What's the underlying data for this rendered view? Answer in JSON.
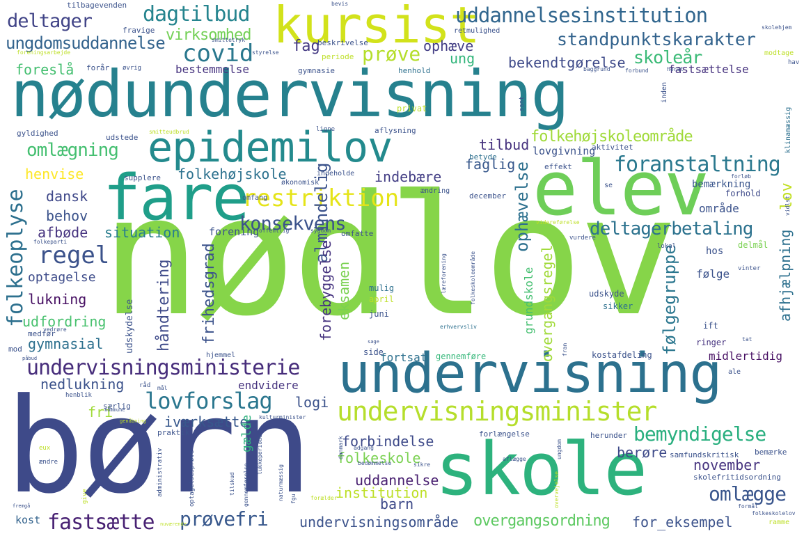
{
  "words": [
    {
      "text": "nødlov",
      "color": "#86d549"
    },
    {
      "text": "børn",
      "color": "#3e4a89"
    },
    {
      "text": "nødundervisning",
      "color": "#26818e"
    },
    {
      "text": "undervisning",
      "color": "#2c718e"
    },
    {
      "text": "skole",
      "color": "#2db27d"
    },
    {
      "text": "elev",
      "color": "#6ece58"
    },
    {
      "text": "fare",
      "color": "#1f9e89"
    },
    {
      "text": "epidemilov",
      "color": "#238a8d"
    },
    {
      "text": "kursist",
      "color": "#d2e21b"
    },
    {
      "text": "undervisningsminister",
      "color": "#b5de2b"
    },
    {
      "text": "undervisningsministerie",
      "color": "#472d7b"
    },
    {
      "text": "restriktion",
      "color": "#e5e419"
    },
    {
      "text": "uddannelsesinstitution",
      "color": "#31668e"
    },
    {
      "text": "standpunktskarakter",
      "color": "#33638d"
    },
    {
      "text": "dagtilbud",
      "color": "#25848e"
    },
    {
      "text": "deltager",
      "color": "#414487"
    },
    {
      "text": "covid",
      "color": "#2a788e"
    },
    {
      "text": "prøve",
      "color": "#b5de2b"
    },
    {
      "text": "foranstaltning",
      "color": "#2a788e"
    },
    {
      "text": "deltagerbetaling",
      "color": "#2c728e"
    },
    {
      "text": "folkehøjskoleområde",
      "color": "#a0da39"
    },
    {
      "text": "bemyndigelse",
      "color": "#29af7f"
    },
    {
      "text": "lovforslag",
      "color": "#2a768e"
    },
    {
      "text": "fastsætte",
      "color": "#482173"
    },
    {
      "text": "prøvefri",
      "color": "#38588c"
    },
    {
      "text": "omlægge",
      "color": "#39558c"
    },
    {
      "text": "overgangsordning",
      "color": "#5ec962"
    },
    {
      "text": "regel",
      "color": "#3b528b"
    },
    {
      "text": "konsekvens",
      "color": "#3b528b"
    },
    {
      "text": "folkeoplyse",
      "color": "#2d708e"
    },
    {
      "text": "omlægning",
      "color": "#44bf70"
    },
    {
      "text": "ungdomsuddannelse",
      "color": "#33638d"
    },
    {
      "text": "virksomhed",
      "color": "#73d056"
    },
    {
      "text": "fag",
      "color": "#443983"
    },
    {
      "text": "ophæve",
      "color": "#433e85"
    },
    {
      "text": "ung",
      "color": "#31b57b"
    },
    {
      "text": "skoleår",
      "color": "#3aba76"
    },
    {
      "text": "bekendtgørelse",
      "color": "#3e4a89"
    },
    {
      "text": "foreslå",
      "color": "#44bf70"
    },
    {
      "text": "bestemmelse",
      "color": "#46337f"
    },
    {
      "text": "fastsættelse",
      "color": "#46327e"
    },
    {
      "text": "tilbud",
      "color": "#46327e"
    },
    {
      "text": "henvise",
      "color": "#fde725"
    },
    {
      "text": "folkehøjskole",
      "color": "#2c718e"
    },
    {
      "text": "indebære",
      "color": "#433e85"
    },
    {
      "text": "faglig",
      "color": "#38588c"
    },
    {
      "text": "lovgivning",
      "color": "#3b528b"
    },
    {
      "text": "dansk",
      "color": "#3f4889"
    },
    {
      "text": "behov",
      "color": "#3b528b"
    },
    {
      "text": "afbøde",
      "color": "#46337f"
    },
    {
      "text": "situation",
      "color": "#287d8e"
    },
    {
      "text": "forening",
      "color": "#3b528b"
    },
    {
      "text": "optagelse",
      "color": "#3e4c8a"
    },
    {
      "text": "lukning",
      "color": "#471063"
    },
    {
      "text": "udfordring",
      "color": "#48c16e"
    },
    {
      "text": "gymnasial",
      "color": "#2d708e"
    },
    {
      "text": "håndtering",
      "color": "#3e4a89"
    },
    {
      "text": "friheds­grad",
      "color": "#3b528b"
    },
    {
      "text": "nedlukning",
      "color": "#3b528b"
    },
    {
      "text": "endvidere",
      "color": "#46337f"
    },
    {
      "text": "logi",
      "color": "#3b528b"
    },
    {
      "text": "iværksætte",
      "color": "#38588c"
    },
    {
      "text": "fri",
      "color": "#a0da39"
    },
    {
      "text": "forbindelse",
      "color": "#3e4a89"
    },
    {
      "text": "folkeskole",
      "color": "#7ad151"
    },
    {
      "text": "uddannelse",
      "color": "#481f70"
    },
    {
      "text": "institution",
      "color": "#bddf26"
    },
    {
      "text": "barn",
      "color": "#3e4a89"
    },
    {
      "text": "undervisningsområde",
      "color": "#3b528b"
    },
    {
      "text": "berøre",
      "color": "#3e4a89"
    },
    {
      "text": "november",
      "color": "#46337f"
    },
    {
      "text": "for_eksempel",
      "color": "#3b528b"
    },
    {
      "text": "kost",
      "color": "#33638d"
    },
    {
      "text": "lov",
      "color": "#c2df23"
    },
    {
      "text": "almindelig",
      "color": "#3b528b"
    },
    {
      "text": "ophævelse",
      "color": "#2d708e"
    },
    {
      "text": "eksamen",
      "color": "#7ad151"
    },
    {
      "text": "forebyggelse",
      "color": "#46337f"
    },
    {
      "text": "følgegruppe",
      "color": "#2a768e"
    },
    {
      "text": "afhjælpning",
      "color": "#2d708e"
    },
    {
      "text": "overgangsregel",
      "color": "#a0da39"
    },
    {
      "text": "grundskole",
      "color": "#44bf70"
    },
    {
      "text": "midlertidig",
      "color": "#471063"
    },
    {
      "text": "fortsat",
      "color": "#2d708e"
    },
    {
      "text": "gennemføre",
      "color": "#35b779"
    },
    {
      "text": "gælde",
      "color": "#2db27d"
    },
    {
      "text": "område",
      "color": "#3b528b"
    },
    {
      "text": "bemærkning",
      "color": "#39558c"
    },
    {
      "text": "forhold",
      "color": "#3e4a89"
    },
    {
      "text": "følge",
      "color": "#3b528b"
    },
    {
      "text": "hos",
      "color": "#3b528b"
    },
    {
      "text": "delmål",
      "color": "#7ad151"
    },
    {
      "text": "ringer",
      "color": "#46337f"
    },
    {
      "text": "ift",
      "color": "#3b528b"
    },
    {
      "text": "sikker",
      "color": "#2d708e"
    },
    {
      "text": "udskyde",
      "color": "#3b528b"
    },
    {
      "text": "udskydelse",
      "color": "#3b528b"
    },
    {
      "text": "mulig",
      "color": "#2d708e"
    },
    {
      "text": "april",
      "color": "#bddf26"
    },
    {
      "text": "juni",
      "color": "#3b528b"
    },
    {
      "text": "effekt",
      "color": "#3b528b"
    },
    {
      "text": "aktivitet",
      "color": "#3b528b"
    },
    {
      "text": "betyde",
      "color": "#2d708e"
    },
    {
      "text": "december",
      "color": "#3b528b"
    },
    {
      "text": "omfatte",
      "color": "#3b528b"
    },
    {
      "text": "omfang",
      "color": "#3b528b"
    },
    {
      "text": "supplere",
      "color": "#3b528b"
    },
    {
      "text": "økonomisk",
      "color": "#3b528b"
    },
    {
      "text": "ændring",
      "color": "#3b528b"
    },
    {
      "text": "indeholde",
      "color": "#3b528b"
    },
    {
      "text": "aflysning",
      "color": "#3b528b"
    },
    {
      "text": "gyldighed",
      "color": "#3b528b"
    },
    {
      "text": "udstede",
      "color": "#3b528b"
    },
    {
      "text": "smitteudbrud",
      "color": "#bddf26"
    },
    {
      "text": "ligne",
      "color": "#3b528b"
    },
    {
      "text": "privat",
      "color": "#bddf26"
    },
    {
      "text": "sant",
      "color": "#3b528b"
    },
    {
      "text": "inden",
      "color": "#3b528b"
    },
    {
      "text": "klinamæssig",
      "color": "#2d708e"
    },
    {
      "text": "forløb",
      "color": "#3b528b"
    },
    {
      "text": "se",
      "color": "#3b528b"
    },
    {
      "text": "gymnasie",
      "color": "#3b528b"
    },
    {
      "text": "henhold",
      "color": "#2d708e"
    },
    {
      "text": "baggrund",
      "color": "#3b528b"
    },
    {
      "text": "forbund",
      "color": "#3b528b"
    },
    {
      "text": "herat",
      "color": "#3b528b"
    },
    {
      "text": "hav",
      "color": "#3b528b"
    },
    {
      "text": "modtage",
      "color": "#bddf26"
    },
    {
      "text": "skolehjem",
      "color": "#3b528b"
    },
    {
      "text": "retmulighed",
      "color": "#3b528b"
    },
    {
      "text": "bevis",
      "color": "#3b528b"
    },
    {
      "text": "tilbagevenden",
      "color": "#3b528b"
    },
    {
      "text": "fravige",
      "color": "#3b528b"
    },
    {
      "text": "smittetryk",
      "color": "#3b528b"
    },
    {
      "text": "beskrivelse",
      "color": "#3b528b"
    },
    {
      "text": "foreningsarbejde",
      "color": "#bddf26"
    },
    {
      "text": "styrelse",
      "color": "#3b528b"
    },
    {
      "text": "periode",
      "color": "#bddf26"
    },
    {
      "text": "forår",
      "color": "#3b528b"
    },
    {
      "text": "øvrig",
      "color": "#3b528b"
    },
    {
      "text": "offentlig",
      "color": "#3b528b"
    },
    {
      "text": "sygdom",
      "color": "#3b528b"
    },
    {
      "text": "videreførelse",
      "color": "#bddf26"
    },
    {
      "text": "vidlst",
      "color": "#3b528b"
    },
    {
      "text": "lokal",
      "color": "#3b528b"
    },
    {
      "text": "vinter",
      "color": "#3b528b"
    },
    {
      "text": "vurdere",
      "color": "#3b528b"
    },
    {
      "text": "kostafdeling",
      "color": "#3b528b"
    },
    {
      "text": "ale",
      "color": "#3b528b"
    },
    {
      "text": "fran",
      "color": "#3b528b"
    },
    {
      "text": "tat",
      "color": "#3b528b"
    },
    {
      "text": "læreforening",
      "color": "#3b528b"
    },
    {
      "text": "folkeskoleområde",
      "color": "#3b528b"
    },
    {
      "text": "erhvervsliv",
      "color": "#2d708e"
    },
    {
      "text": "side",
      "color": "#3b528b"
    },
    {
      "text": "sage",
      "color": "#3b528b"
    },
    {
      "text": "hjemmel",
      "color": "#3b528b"
    },
    {
      "text": "folkeparti",
      "color": "#3b528b"
    },
    {
      "text": "vedrøre",
      "color": "#3b528b"
    },
    {
      "text": "medfør",
      "color": "#3b528b"
    },
    {
      "text": "mod",
      "color": "#3b528b"
    },
    {
      "text": "påbud",
      "color": "#3b528b"
    },
    {
      "text": "hjemmel",
      "color": "#3b528b"
    },
    {
      "text": "råd",
      "color": "#3b528b"
    },
    {
      "text": "mål",
      "color": "#3b528b"
    },
    {
      "text": "henblik",
      "color": "#3b528b"
    },
    {
      "text": "særlig",
      "color": "#3b528b"
    },
    {
      "text": "kommune",
      "color": "#3b528b"
    },
    {
      "text": "kulturminister",
      "color": "#3b528b"
    },
    {
      "text": "genåbning",
      "color": "#bddf26"
    },
    {
      "text": "praktik",
      "color": "#3b528b"
    },
    {
      "text": "administrativ",
      "color": "#3b528b"
    },
    {
      "text": "optagelsesprøve",
      "color": "#3b528b"
    },
    {
      "text": "eux",
      "color": "#bddf26"
    },
    {
      "text": "ændre",
      "color": "#3b528b"
    },
    {
      "text": "give",
      "color": "#bddf26"
    },
    {
      "text": "fremgå",
      "color": "#3b528b"
    },
    {
      "text": "lukkeperiode",
      "color": "#3b528b"
    },
    {
      "text": "gennemførelse",
      "color": "#3b528b"
    },
    {
      "text": "tilskud",
      "color": "#3b528b"
    },
    {
      "text": "naturmæssig",
      "color": "#3b528b"
    },
    {
      "text": "fgu",
      "color": "#3b528b"
    },
    {
      "text": "forælder",
      "color": "#bddf26"
    },
    {
      "text": "danmark",
      "color": "#3b528b"
    },
    {
      "text": "adgang",
      "color": "#3b528b"
    },
    {
      "text": "bedømmelse",
      "color": "#3b528b"
    },
    {
      "text": "sikre",
      "color": "#3b528b"
    },
    {
      "text": "aflægge",
      "color": "#3b528b"
    },
    {
      "text": "ungdom",
      "color": "#3b528b"
    },
    {
      "text": "overvejelse",
      "color": "#bddf26"
    },
    {
      "text": "forlængelse",
      "color": "#3b528b"
    },
    {
      "text": "herunder",
      "color": "#3b528b"
    },
    {
      "text": "bemærke",
      "color": "#3b528b"
    },
    {
      "text": "samfundskritisk",
      "color": "#3b528b"
    },
    {
      "text": "skolefritidsordning",
      "color": "#3b528b"
    },
    {
      "text": "formål",
      "color": "#3b528b"
    },
    {
      "text": "folkeskolelov",
      "color": "#3b528b"
    },
    {
      "text": "ramme",
      "color": "#bddf26"
    },
    {
      "text": "nuværende",
      "color": "#bddf26"
    }
  ]
}
